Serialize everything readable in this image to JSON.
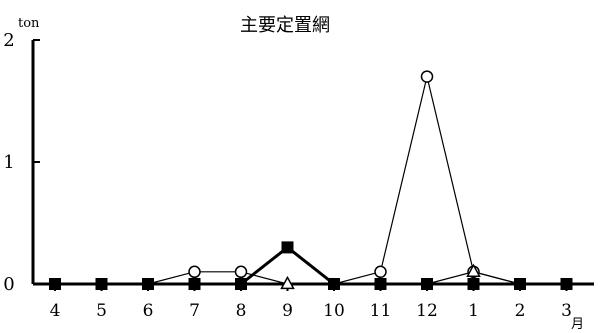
{
  "chart_data": {
    "type": "line",
    "title": "主要定置網",
    "ylabel": "ton",
    "xlabel": "月",
    "categories": [
      "4",
      "5",
      "6",
      "7",
      "8",
      "9",
      "10",
      "11",
      "12",
      "1",
      "2",
      "3"
    ],
    "ylim": [
      0,
      2
    ],
    "yticks": [
      "0",
      "1",
      "2"
    ],
    "grid": false,
    "series": [
      {
        "marker": "open-circle",
        "line_weight": "thin",
        "values": [
          0,
          0,
          0,
          0.1,
          0.1,
          0,
          0,
          0.1,
          1.7,
          0.1,
          0,
          0
        ]
      },
      {
        "marker": "open-triangle",
        "line_weight": "thin",
        "values": [
          0,
          0,
          0,
          0,
          0,
          0,
          0,
          0,
          0,
          0.1,
          0,
          0
        ]
      },
      {
        "marker": "filled-square",
        "line_weight": "thick",
        "values": [
          0,
          0,
          0,
          0,
          0,
          0.3,
          0,
          0,
          0,
          0,
          0,
          0
        ]
      }
    ]
  }
}
